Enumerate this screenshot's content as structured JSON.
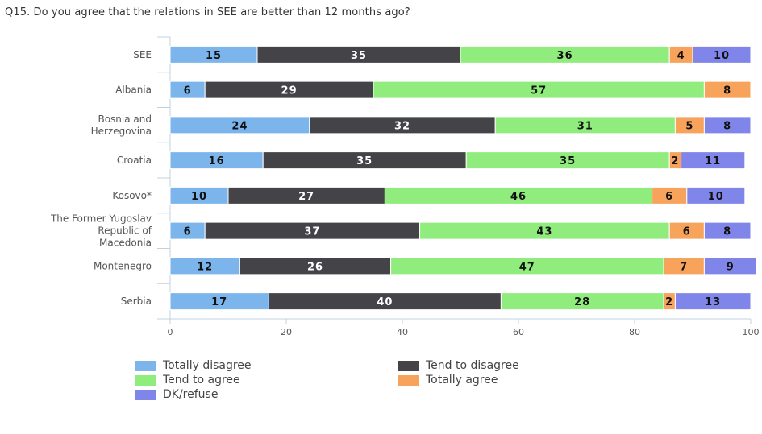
{
  "title": "Q15. Do you agree that the relations in SEE are better than 12 months ago?",
  "chart_data": {
    "type": "bar",
    "orientation": "horizontal",
    "stacked": true,
    "categories": [
      [
        "SEE"
      ],
      [
        "Albania"
      ],
      [
        "Bosnia and",
        "Herzegovina"
      ],
      [
        "Croatia"
      ],
      [
        "Kosovo*"
      ],
      [
        "The Former Yugoslav",
        "Republic of",
        "Macedonia"
      ],
      [
        "Montenegro"
      ],
      [
        "Serbia"
      ]
    ],
    "series": [
      {
        "name": "Totally disagree",
        "color": "#7cb5ec",
        "values": [
          15,
          6,
          24,
          16,
          10,
          6,
          12,
          17
        ]
      },
      {
        "name": "Tend to disagree",
        "color": "#434348",
        "values": [
          35,
          29,
          32,
          35,
          27,
          37,
          26,
          40
        ]
      },
      {
        "name": "Tend to agree",
        "color": "#90ed7d",
        "values": [
          36,
          57,
          31,
          35,
          46,
          43,
          47,
          28
        ]
      },
      {
        "name": "Totally agree",
        "color": "#f7a35c",
        "values": [
          4,
          8,
          5,
          2,
          6,
          6,
          7,
          2
        ]
      },
      {
        "name": "DK/refuse",
        "color": "#8085e9",
        "values": [
          10,
          0,
          8,
          11,
          10,
          8,
          9,
          13
        ]
      }
    ],
    "xlim": [
      0,
      100
    ],
    "xticks": [
      0,
      20,
      40,
      60,
      80,
      100
    ],
    "grid": false,
    "legend_position": "bottom"
  }
}
